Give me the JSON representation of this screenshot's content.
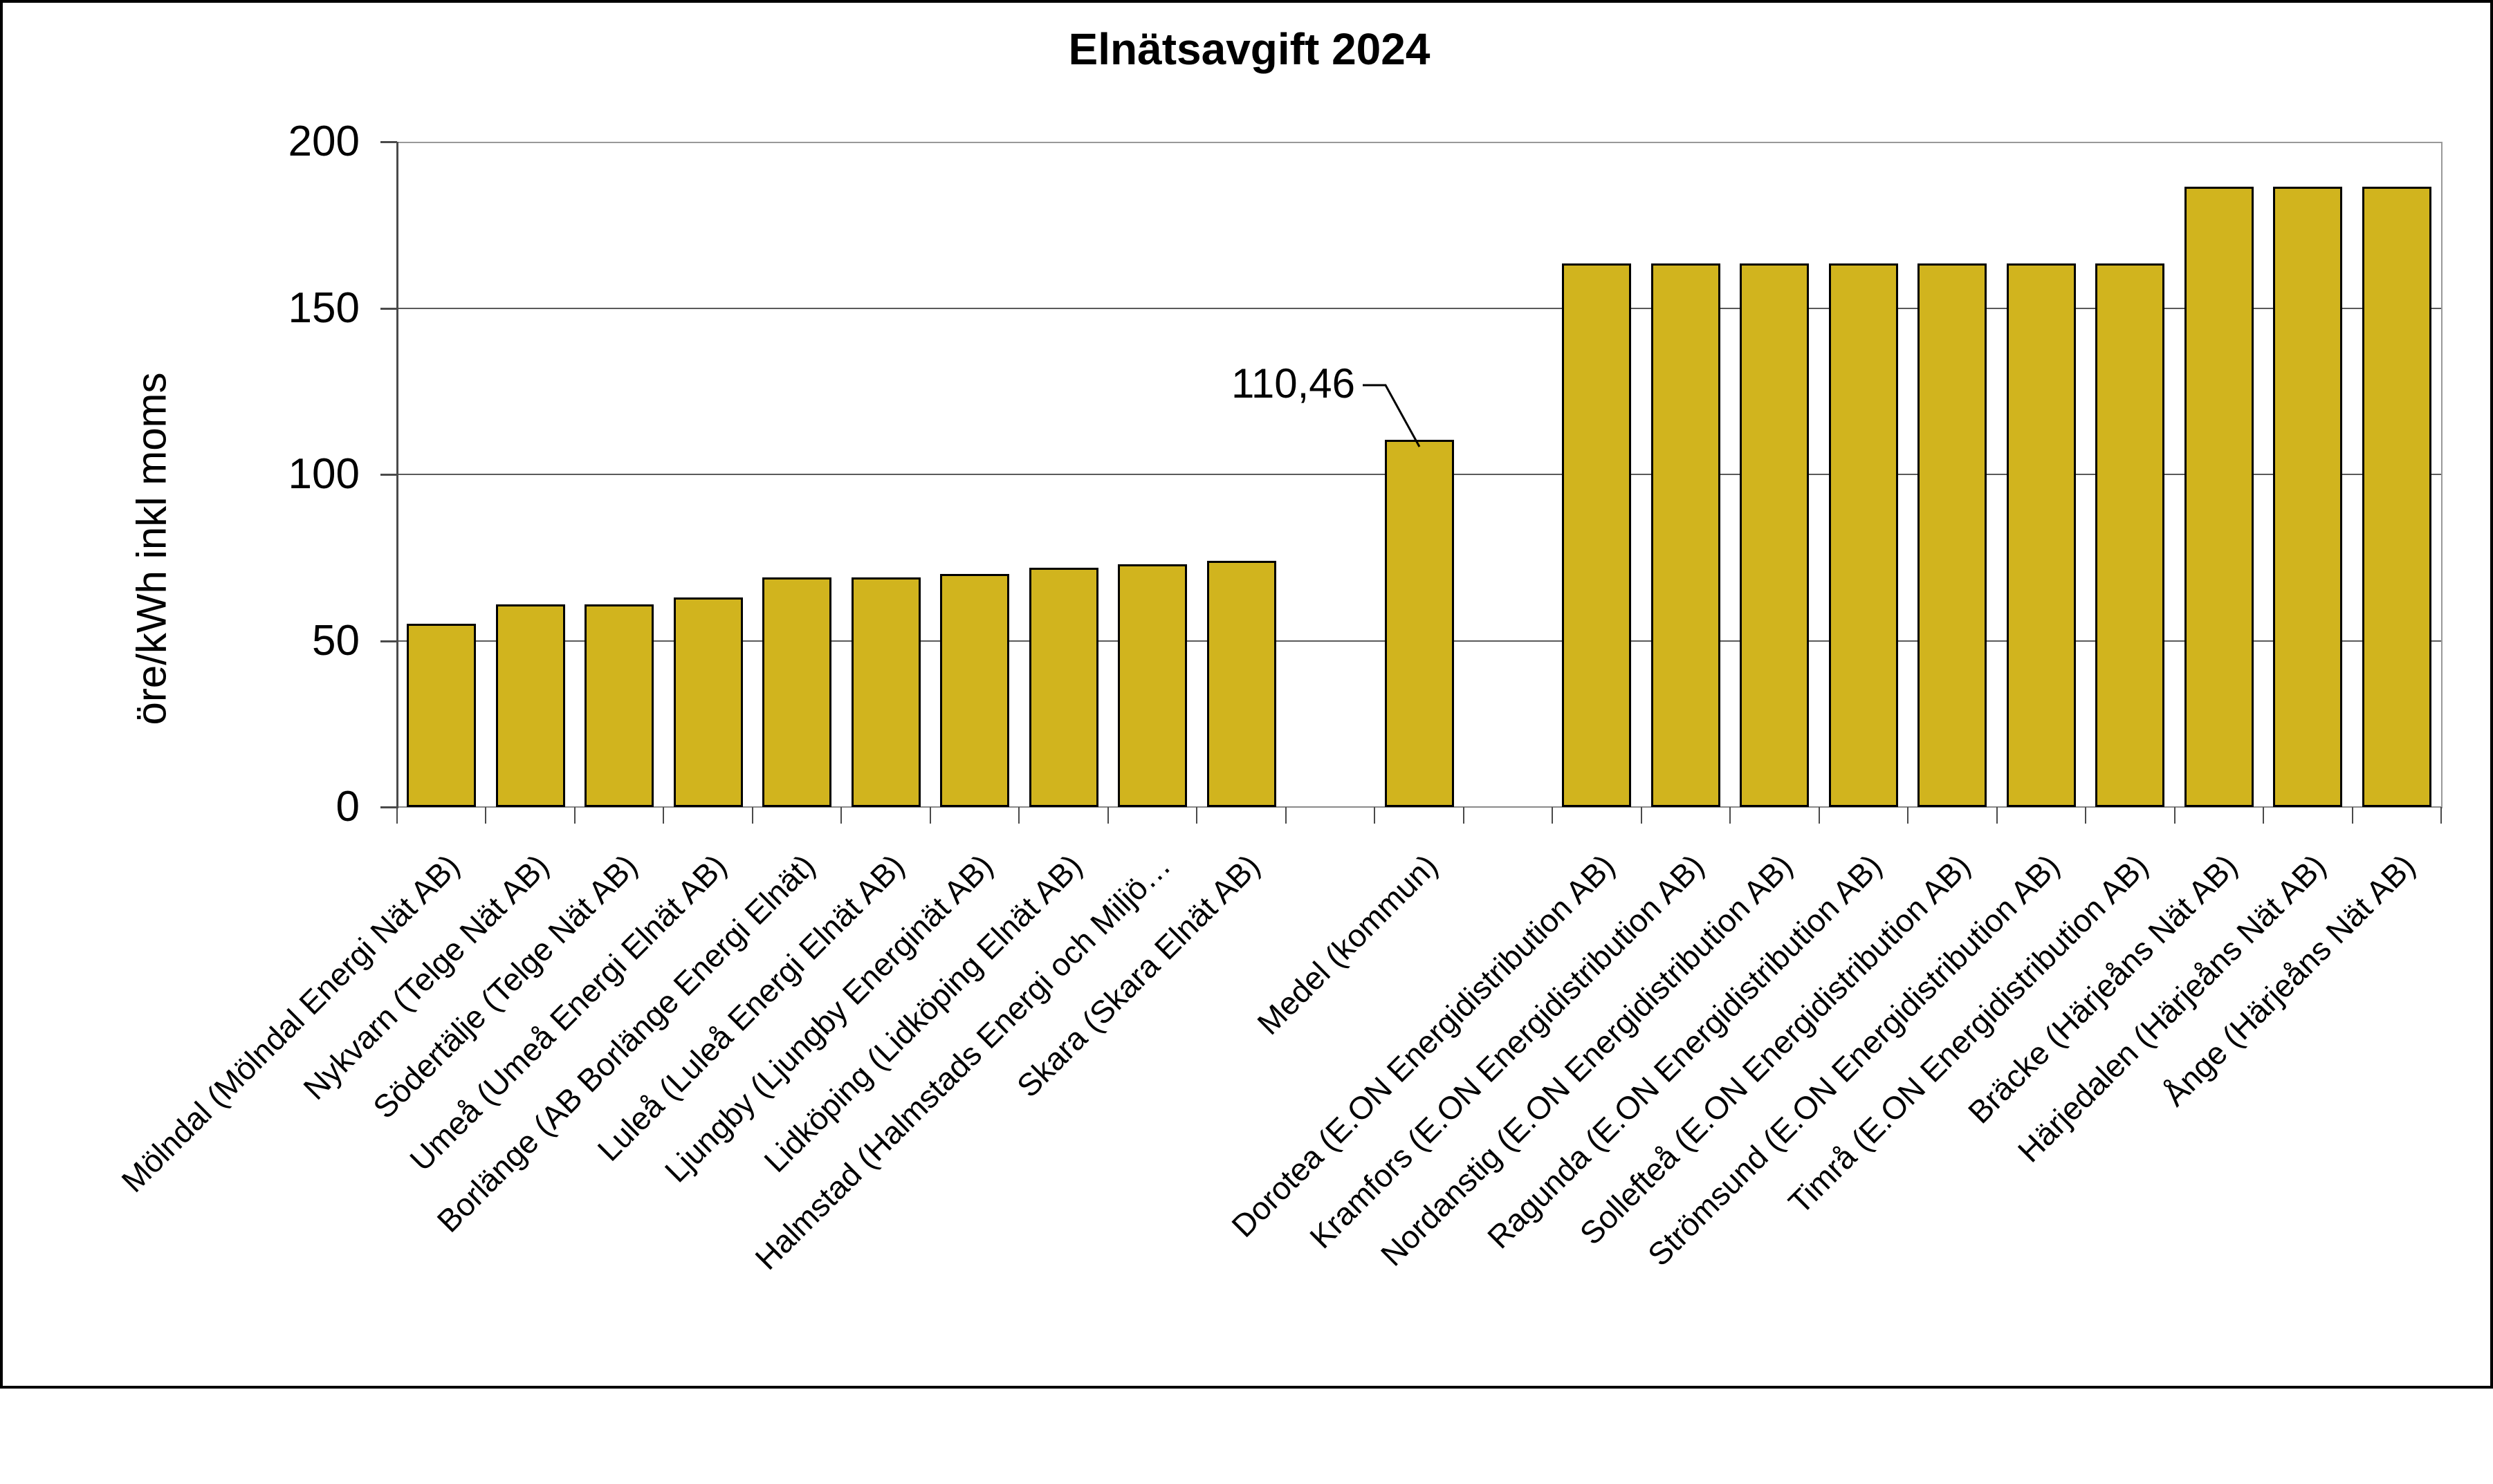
{
  "chart_data": {
    "type": "bar",
    "title": "Elnätsavgift 2024",
    "ylabel": "öre/kWh inkl moms",
    "xlabel": "",
    "ylim": [
      0,
      200
    ],
    "ytick_step": 50,
    "yticks": [
      0,
      50,
      100,
      150,
      200
    ],
    "grid": true,
    "legend": "none",
    "bar_color": "#D1B41E",
    "bar_border_color": "#000000",
    "total_slots": 23,
    "gap_slots": [
      10,
      12
    ],
    "annotation": {
      "text": "110,46",
      "target_category": "Medel (kommun)",
      "target_value": 110.46
    },
    "series": [
      {
        "name": "Elnätsavgift 2024",
        "points": [
          {
            "label": "Mölndal (Mölndal Energi Nät AB)",
            "value": 55,
            "slot": 0
          },
          {
            "label": "Nykvarn (Telge Nät AB)",
            "value": 61,
            "slot": 1
          },
          {
            "label": "Södertälje (Telge Nät AB)",
            "value": 61,
            "slot": 2
          },
          {
            "label": "Umeå (Umeå Energi Elnät AB)",
            "value": 63,
            "slot": 3
          },
          {
            "label": "Borlänge (AB Borlänge Energi Elnät)",
            "value": 69,
            "slot": 4
          },
          {
            "label": "Luleå (Luleå Energi Elnät AB)",
            "value": 69,
            "slot": 5
          },
          {
            "label": "Ljungby (Ljungby Energinät AB)",
            "value": 70,
            "slot": 6
          },
          {
            "label": "Lidköping (Lidköping Elnät AB)",
            "value": 72,
            "slot": 7
          },
          {
            "label": "Halmstad (Halmstads Energi och Miljö…",
            "value": 73,
            "slot": 8
          },
          {
            "label": "Skara (Skara Elnät AB)",
            "value": 74,
            "slot": 9
          },
          {
            "label": "Medel (kommun)",
            "value": 110.46,
            "slot": 11
          },
          {
            "label": "Dorotea (E.ON Energidistribution AB)",
            "value": 163.4,
            "slot": 13
          },
          {
            "label": "Kramfors (E.ON Energidistribution AB)",
            "value": 163.4,
            "slot": 14
          },
          {
            "label": "Nordanstig (E.ON Energidistribution AB)",
            "value": 163.4,
            "slot": 15
          },
          {
            "label": "Ragunda (E.ON Energidistribution AB)",
            "value": 163.4,
            "slot": 16
          },
          {
            "label": "Sollefteå (E.ON Energidistribution AB)",
            "value": 163.4,
            "slot": 17
          },
          {
            "label": "Strömsund (E.ON Energidistribution AB)",
            "value": 163.4,
            "slot": 18
          },
          {
            "label": "Timrå (E.ON Energidistribution AB)",
            "value": 163.4,
            "slot": 19
          },
          {
            "label": "Bräcke (Härjeåns Nät AB)",
            "value": 186.4,
            "slot": 20
          },
          {
            "label": "Härjedalen (Härjeåns Nät AB)",
            "value": 186.4,
            "slot": 21
          },
          {
            "label": "Ånge (Härjeåns Nät AB)",
            "value": 186.4,
            "slot": 22
          }
        ]
      }
    ]
  }
}
